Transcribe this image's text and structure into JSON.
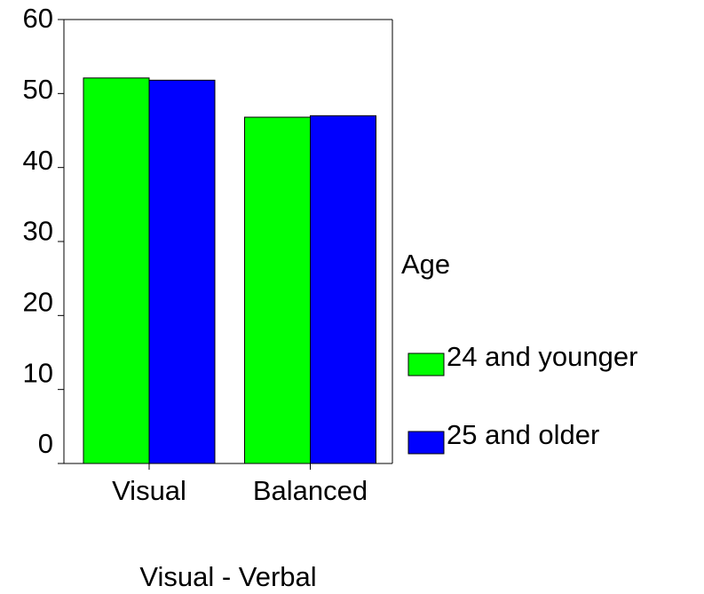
{
  "chart_data": {
    "type": "bar",
    "categories": [
      "Visual",
      "Balanced"
    ],
    "series": [
      {
        "name": "24 and younger",
        "color": "#00ff00",
        "values": [
          52.1,
          46.8
        ]
      },
      {
        "name": "25 and older",
        "color": "#0000ff",
        "values": [
          51.8,
          47.0
        ]
      }
    ],
    "x_label": "Visual - Verbal",
    "legend_title": "Age",
    "ylim": [
      0,
      60
    ],
    "yticks": [
      0,
      10,
      20,
      30,
      40,
      50,
      60
    ],
    "grid": false,
    "legend": "right"
  }
}
